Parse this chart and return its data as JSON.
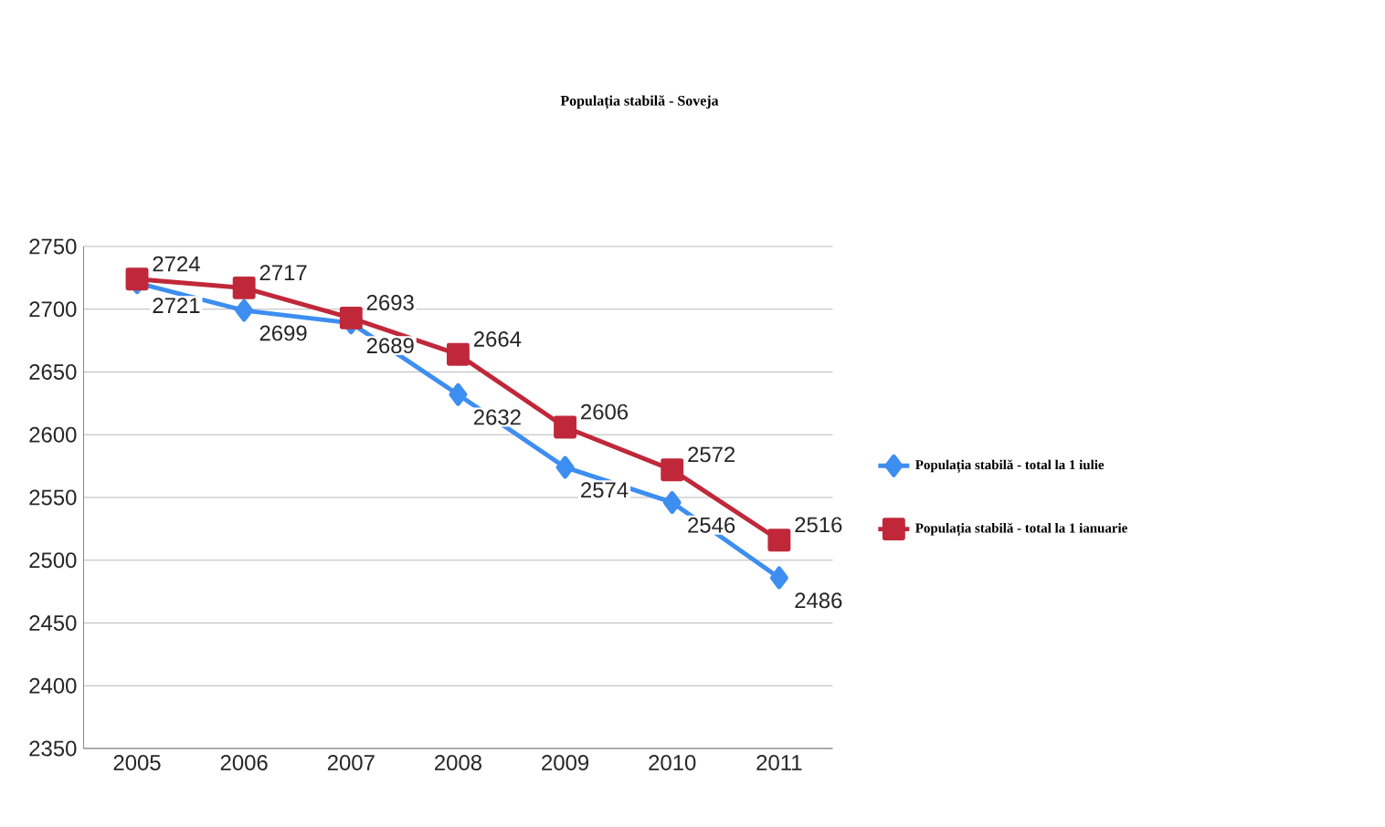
{
  "chart_data": {
    "type": "line",
    "title": "Populația stabilă - Soveja",
    "categories": [
      "2005",
      "2006",
      "2007",
      "2008",
      "2009",
      "2010",
      "2011"
    ],
    "series": [
      {
        "name": "Populația stabilă - total la 1 iulie",
        "color": "#3d8ef0",
        "marker": "diamond",
        "values": [
          2721,
          2699,
          2689,
          2632,
          2574,
          2546,
          2486
        ]
      },
      {
        "name": "Populația stabilă - total la 1 ianuarie",
        "color": "#c0283a",
        "marker": "square",
        "values": [
          2724,
          2717,
          2693,
          2664,
          2606,
          2572,
          2516
        ]
      }
    ],
    "ylim": [
      2350,
      2750
    ],
    "yticks": [
      2350,
      2400,
      2450,
      2500,
      2550,
      2600,
      2650,
      2700,
      2750
    ],
    "grid": "y",
    "legend": "right",
    "data_labels": true
  }
}
